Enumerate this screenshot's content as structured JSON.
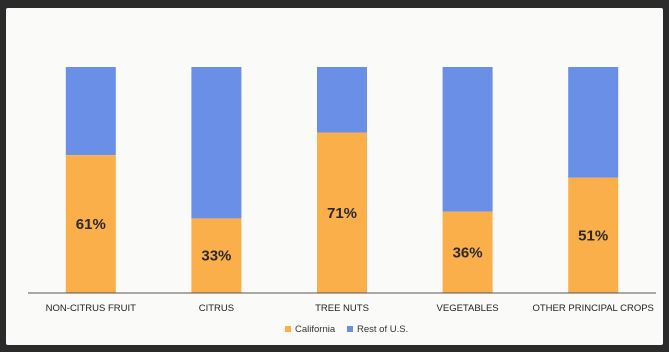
{
  "colors": {
    "california": "#FBAF4B",
    "rest": "#6A8FE6",
    "axis": "#555555"
  },
  "chart_data": {
    "type": "bar",
    "stacked": true,
    "percent_stacked": true,
    "categories": [
      "NON-CITRUS FRUIT",
      "CITRUS",
      "TREE NUTS",
      "VEGETABLES",
      "OTHER PRINCIPAL CROPS"
    ],
    "series": [
      {
        "name": "California",
        "values": [
          61,
          33,
          71,
          36,
          51
        ],
        "labels": [
          "61%",
          "33%",
          "71%",
          "36%",
          "51%"
        ],
        "color": "#FBAF4B"
      },
      {
        "name": "Rest of U.S.",
        "values": [
          39,
          67,
          29,
          64,
          49
        ],
        "color": "#6A8FE6"
      }
    ],
    "ylim": [
      0,
      100
    ],
    "grid": false,
    "legend_position": "bottom"
  }
}
